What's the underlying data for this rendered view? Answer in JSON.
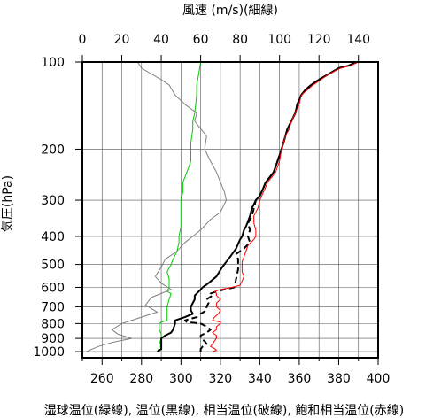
{
  "chart_data": {
    "type": "line",
    "top_axis_label": "風速 (m/s)(細線)",
    "bottom_axis_label": "湿球温位(緑線), 温位(黒線), 相当温位(破線), 飽和相当温位(赤線)",
    "left_axis_label": "気圧(hPa)",
    "y_axis": {
      "scale": "log",
      "inverted": true,
      "range": [
        1050,
        100
      ],
      "ticks": [
        100,
        200,
        300,
        400,
        500,
        600,
        700,
        800,
        900,
        1000
      ]
    },
    "x_axis_bottom": {
      "unit": "K",
      "range": [
        250,
        400
      ],
      "ticks": [
        260,
        280,
        300,
        320,
        340,
        360,
        380,
        400
      ],
      "minor_ticks": [
        250,
        270,
        290,
        310,
        330,
        350,
        370,
        390
      ]
    },
    "x_axis_top": {
      "unit": "m/s",
      "range": [
        0,
        150
      ],
      "ticks": [
        0,
        20,
        40,
        60,
        80,
        100,
        120,
        140
      ]
    },
    "grid": true,
    "colors": {
      "wet_bulb": "#00cc00",
      "theta": "#000000",
      "theta_e": "#000000",
      "theta_es": "#ff0000",
      "wind": "#808080"
    },
    "series": [
      {
        "name": "湿球温位",
        "axis": "bottom",
        "color": "#00cc00",
        "style": "solid",
        "width": 1,
        "points": [
          [
            288,
            1000
          ],
          [
            289,
            970
          ],
          [
            289,
            940
          ],
          [
            290,
            900
          ],
          [
            290,
            870
          ],
          [
            289,
            840
          ],
          [
            289,
            820
          ],
          [
            289,
            800
          ],
          [
            290,
            790
          ],
          [
            293,
            780
          ],
          [
            293,
            760
          ],
          [
            293,
            750
          ],
          [
            293,
            730
          ],
          [
            293,
            700
          ],
          [
            294,
            660
          ],
          [
            295,
            630
          ],
          [
            293,
            620
          ],
          [
            294,
            600
          ],
          [
            294,
            560
          ],
          [
            293,
            530
          ],
          [
            295,
            500
          ],
          [
            296,
            480
          ],
          [
            298,
            450
          ],
          [
            299,
            420
          ],
          [
            299,
            400
          ],
          [
            300,
            370
          ],
          [
            300,
            350
          ],
          [
            300,
            320
          ],
          [
            300,
            300
          ],
          [
            301,
            280
          ],
          [
            301,
            260
          ],
          [
            302,
            250
          ],
          [
            303,
            240
          ],
          [
            305,
            220
          ],
          [
            305,
            200
          ],
          [
            305,
            190
          ],
          [
            306,
            170
          ],
          [
            306,
            160
          ],
          [
            307,
            150
          ],
          [
            308,
            130
          ],
          [
            308,
            120
          ],
          [
            309,
            110
          ],
          [
            310,
            100
          ]
        ]
      },
      {
        "name": "温位",
        "axis": "bottom",
        "color": "#000000",
        "style": "solid",
        "width": 2,
        "points": [
          [
            288,
            1000
          ],
          [
            289,
            990
          ],
          [
            290,
            980
          ],
          [
            290,
            960
          ],
          [
            290,
            930
          ],
          [
            290,
            900
          ],
          [
            292,
            880
          ],
          [
            295,
            860
          ],
          [
            296,
            840
          ],
          [
            297,
            800
          ],
          [
            297,
            780
          ],
          [
            302,
            760
          ],
          [
            306,
            740
          ],
          [
            305,
            720
          ],
          [
            305,
            700
          ],
          [
            307,
            660
          ],
          [
            307,
            640
          ],
          [
            309,
            620
          ],
          [
            311,
            600
          ],
          [
            314,
            580
          ],
          [
            318,
            550
          ],
          [
            321,
            510
          ],
          [
            323,
            490
          ],
          [
            325,
            470
          ],
          [
            327,
            450
          ],
          [
            328,
            440
          ],
          [
            330,
            410
          ],
          [
            331,
            400
          ],
          [
            332,
            380
          ],
          [
            333,
            370
          ],
          [
            335,
            340
          ],
          [
            336,
            320
          ],
          [
            337,
            310
          ],
          [
            338,
            300
          ],
          [
            340,
            290
          ],
          [
            342,
            270
          ],
          [
            343,
            260
          ],
          [
            345,
            250
          ],
          [
            347,
            240
          ],
          [
            349,
            220
          ],
          [
            351,
            200
          ],
          [
            352,
            190
          ],
          [
            353,
            180
          ],
          [
            354,
            170
          ],
          [
            356,
            160
          ],
          [
            358,
            150
          ],
          [
            359,
            140
          ],
          [
            361,
            130
          ],
          [
            363,
            125
          ],
          [
            366,
            120
          ],
          [
            370,
            115
          ],
          [
            375,
            110
          ],
          [
            380,
            105
          ],
          [
            385,
            103
          ],
          [
            389,
            100
          ]
        ]
      },
      {
        "name": "相当温位",
        "axis": "bottom",
        "color": "#000000",
        "style": "dashed",
        "width": 2,
        "points": [
          [
            310,
            1000
          ],
          [
            310,
            980
          ],
          [
            311,
            960
          ],
          [
            313,
            940
          ],
          [
            312,
            920
          ],
          [
            310,
            900
          ],
          [
            310,
            880
          ],
          [
            313,
            860
          ],
          [
            315,
            840
          ],
          [
            313,
            820
          ],
          [
            310,
            800
          ],
          [
            303,
            790
          ],
          [
            302,
            780
          ],
          [
            305,
            770
          ],
          [
            308,
            760
          ],
          [
            310,
            740
          ],
          [
            313,
            720
          ],
          [
            313,
            700
          ],
          [
            314,
            680
          ],
          [
            313,
            660
          ],
          [
            316,
            640
          ],
          [
            315,
            630
          ],
          [
            318,
            620
          ],
          [
            322,
            610
          ],
          [
            327,
            600
          ],
          [
            328,
            560
          ],
          [
            329,
            520
          ],
          [
            329,
            480
          ],
          [
            328,
            460
          ],
          [
            332,
            440
          ],
          [
            335,
            420
          ],
          [
            334,
            400
          ],
          [
            335,
            380
          ],
          [
            334,
            360
          ],
          [
            336,
            340
          ],
          [
            337,
            320
          ],
          [
            338,
            300
          ],
          [
            340,
            290
          ],
          [
            342,
            270
          ],
          [
            343,
            260
          ],
          [
            345,
            250
          ],
          [
            347,
            240
          ],
          [
            349,
            220
          ],
          [
            351,
            200
          ],
          [
            352,
            190
          ],
          [
            353,
            180
          ],
          [
            354,
            170
          ],
          [
            356,
            160
          ],
          [
            358,
            150
          ],
          [
            359,
            140
          ],
          [
            361,
            130
          ],
          [
            363,
            125
          ],
          [
            366,
            120
          ],
          [
            370,
            115
          ],
          [
            375,
            110
          ],
          [
            380,
            105
          ],
          [
            385,
            103
          ],
          [
            389,
            100
          ]
        ]
      },
      {
        "name": "飽和相当温位",
        "axis": "bottom",
        "color": "#ff0000",
        "style": "solid",
        "width": 1,
        "points": [
          [
            316,
            1000
          ],
          [
            318,
            990
          ],
          [
            317,
            975
          ],
          [
            315,
            960
          ],
          [
            316,
            940
          ],
          [
            317,
            920
          ],
          [
            318,
            900
          ],
          [
            318,
            880
          ],
          [
            316,
            860
          ],
          [
            318,
            840
          ],
          [
            318,
            820
          ],
          [
            320,
            800
          ],
          [
            320,
            790
          ],
          [
            316,
            780
          ],
          [
            317,
            760
          ],
          [
            319,
            740
          ],
          [
            320,
            720
          ],
          [
            318,
            700
          ],
          [
            318,
            680
          ],
          [
            320,
            660
          ],
          [
            318,
            640
          ],
          [
            318,
            630
          ],
          [
            317,
            620
          ],
          [
            320,
            610
          ],
          [
            326,
            600
          ],
          [
            330,
            590
          ],
          [
            331,
            570
          ],
          [
            332,
            550
          ],
          [
            331,
            530
          ],
          [
            331,
            510
          ],
          [
            331,
            490
          ],
          [
            332,
            470
          ],
          [
            333,
            450
          ],
          [
            334,
            430
          ],
          [
            337,
            410
          ],
          [
            338,
            400
          ],
          [
            338,
            380
          ],
          [
            337,
            360
          ],
          [
            337,
            340
          ],
          [
            339,
            320
          ],
          [
            340,
            300
          ],
          [
            341,
            290
          ],
          [
            343,
            270
          ],
          [
            344,
            260
          ],
          [
            346,
            250
          ],
          [
            348,
            240
          ],
          [
            350,
            220
          ],
          [
            351,
            200
          ],
          [
            352,
            190
          ],
          [
            353,
            180
          ],
          [
            355,
            170
          ],
          [
            356,
            160
          ],
          [
            358,
            150
          ],
          [
            360,
            140
          ],
          [
            361,
            130
          ],
          [
            364,
            125
          ],
          [
            367,
            120
          ],
          [
            371,
            115
          ],
          [
            375,
            110
          ],
          [
            381,
            105
          ],
          [
            386,
            103
          ],
          [
            390,
            100
          ]
        ]
      },
      {
        "name": "風速",
        "axis": "top",
        "color": "#808080",
        "style": "solid",
        "width": 1,
        "points": [
          [
            2,
            1000
          ],
          [
            8,
            960
          ],
          [
            15,
            930
          ],
          [
            25,
            900
          ],
          [
            18,
            870
          ],
          [
            15,
            840
          ],
          [
            20,
            800
          ],
          [
            30,
            760
          ],
          [
            38,
            730
          ],
          [
            32,
            690
          ],
          [
            35,
            650
          ],
          [
            45,
            610
          ],
          [
            40,
            580
          ],
          [
            37,
            550
          ],
          [
            40,
            510
          ],
          [
            42,
            480
          ],
          [
            48,
            450
          ],
          [
            52,
            420
          ],
          [
            56,
            400
          ],
          [
            60,
            380
          ],
          [
            65,
            350
          ],
          [
            70,
            330
          ],
          [
            73,
            300
          ],
          [
            72,
            280
          ],
          [
            70,
            260
          ],
          [
            68,
            240
          ],
          [
            65,
            220
          ],
          [
            62,
            200
          ],
          [
            63,
            180
          ],
          [
            60,
            170
          ],
          [
            57,
            160
          ],
          [
            58,
            150
          ],
          [
            52,
            140
          ],
          [
            47,
            130
          ],
          [
            44,
            120
          ],
          [
            40,
            115
          ],
          [
            35,
            110
          ],
          [
            30,
            105
          ],
          [
            28,
            100
          ]
        ]
      }
    ]
  }
}
